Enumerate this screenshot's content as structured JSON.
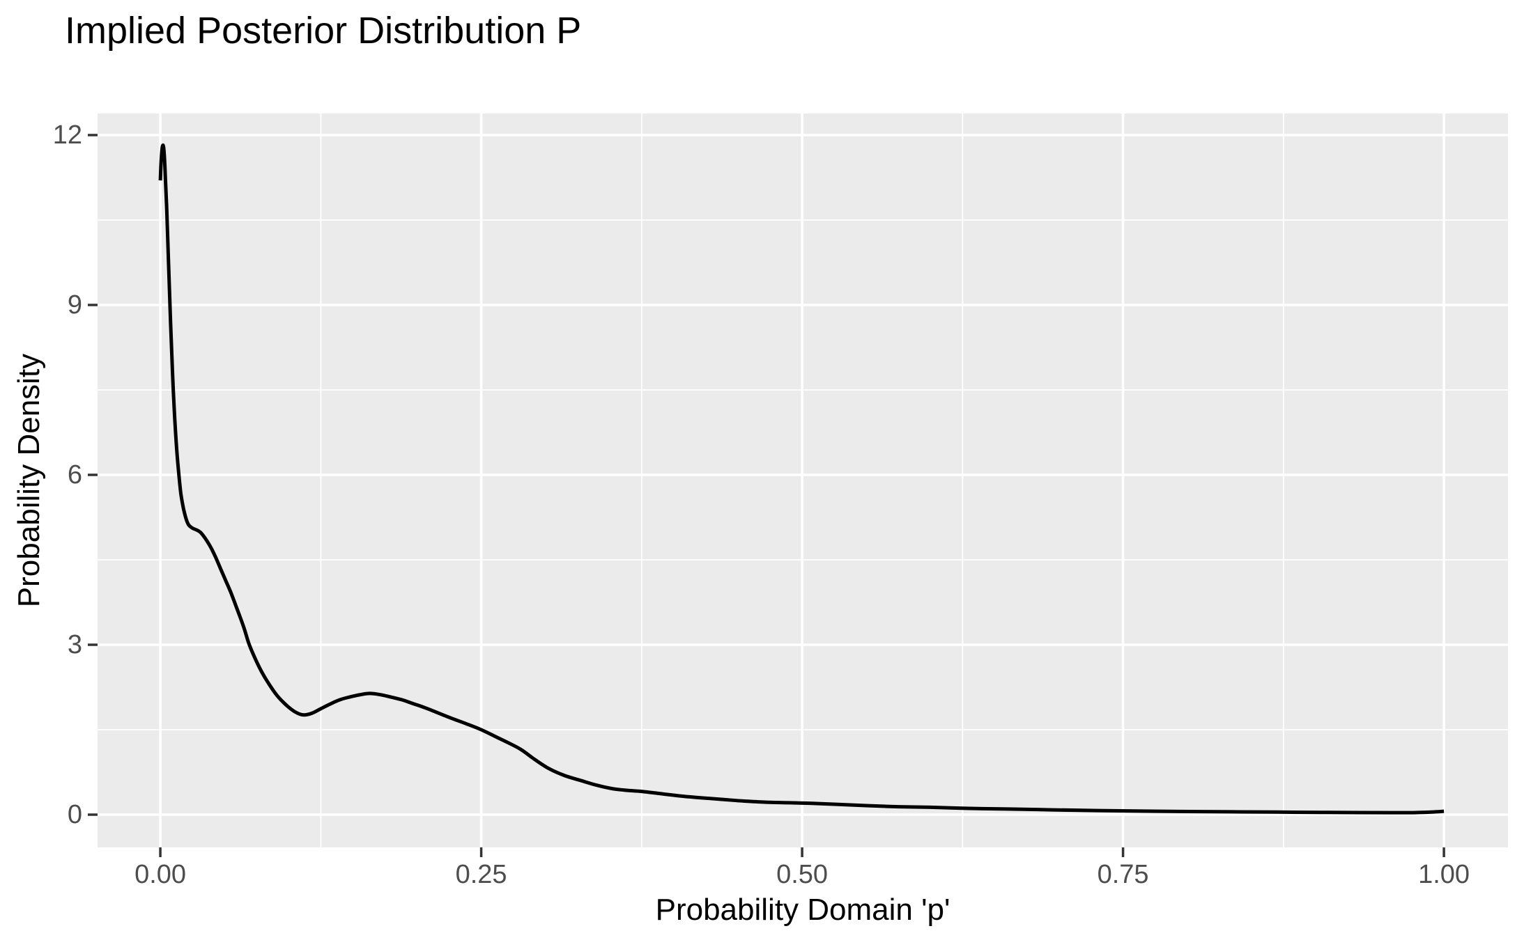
{
  "title": "Implied Posterior Distribution P",
  "chart_data": {
    "type": "line",
    "title": "Implied Posterior Distribution P",
    "xlabel": "Probability Domain 'p'",
    "ylabel": "Probability Density",
    "x_ticks": [
      0.0,
      0.25,
      0.5,
      0.75,
      1.0
    ],
    "x_tick_labels": [
      "0.00",
      "0.25",
      "0.50",
      "0.75",
      "1.00"
    ],
    "x_minor_ticks": [
      0.125,
      0.375,
      0.625,
      0.875
    ],
    "y_ticks": [
      0,
      3,
      6,
      9,
      12
    ],
    "y_tick_labels": [
      "0",
      "3",
      "6",
      "9",
      "12"
    ],
    "y_minor_ticks": [
      1.5,
      4.5,
      7.5,
      10.5
    ],
    "xlim": [
      -0.0489,
      1.0499
    ],
    "ylim": [
      -0.578,
      12.381
    ],
    "grid": true,
    "legend": false,
    "series": [
      {
        "name": "posterior-density",
        "color": "#000000",
        "points": [
          [
            0.0,
            11.2
          ],
          [
            0.0005,
            11.48
          ],
          [
            0.001,
            11.66
          ],
          [
            0.0015,
            11.78
          ],
          [
            0.002,
            11.82
          ],
          [
            0.0025,
            11.79
          ],
          [
            0.003,
            11.68
          ],
          [
            0.0035,
            11.48
          ],
          [
            0.004,
            11.22
          ],
          [
            0.005,
            10.68
          ],
          [
            0.006,
            10.02
          ],
          [
            0.007,
            9.33
          ],
          [
            0.008,
            8.68
          ],
          [
            0.009,
            8.08
          ],
          [
            0.01,
            7.54
          ],
          [
            0.0115,
            6.88
          ],
          [
            0.013,
            6.38
          ],
          [
            0.0145,
            5.99
          ],
          [
            0.016,
            5.67
          ],
          [
            0.018,
            5.41
          ],
          [
            0.02,
            5.23
          ],
          [
            0.022,
            5.12
          ],
          [
            0.025,
            5.06
          ],
          [
            0.028,
            5.03
          ],
          [
            0.031,
            4.99
          ],
          [
            0.034,
            4.91
          ],
          [
            0.037,
            4.81
          ],
          [
            0.04,
            4.69
          ],
          [
            0.043,
            4.55
          ],
          [
            0.047,
            4.34
          ],
          [
            0.051,
            4.13
          ],
          [
            0.055,
            3.92
          ],
          [
            0.06,
            3.62
          ],
          [
            0.065,
            3.31
          ],
          [
            0.069,
            3.02
          ],
          [
            0.074,
            2.75
          ],
          [
            0.079,
            2.52
          ],
          [
            0.084,
            2.33
          ],
          [
            0.09,
            2.13
          ],
          [
            0.096,
            1.98
          ],
          [
            0.102,
            1.86
          ],
          [
            0.107,
            1.79
          ],
          [
            0.112,
            1.76
          ],
          [
            0.118,
            1.79
          ],
          [
            0.125,
            1.87
          ],
          [
            0.132,
            1.95
          ],
          [
            0.14,
            2.03
          ],
          [
            0.148,
            2.08
          ],
          [
            0.156,
            2.12
          ],
          [
            0.163,
            2.14
          ],
          [
            0.171,
            2.12
          ],
          [
            0.179,
            2.08
          ],
          [
            0.188,
            2.03
          ],
          [
            0.197,
            1.96
          ],
          [
            0.206,
            1.89
          ],
          [
            0.216,
            1.8
          ],
          [
            0.227,
            1.7
          ],
          [
            0.239,
            1.6
          ],
          [
            0.25,
            1.5
          ],
          [
            0.261,
            1.38
          ],
          [
            0.271,
            1.27
          ],
          [
            0.281,
            1.15
          ],
          [
            0.292,
            0.97
          ],
          [
            0.303,
            0.81
          ],
          [
            0.315,
            0.69
          ],
          [
            0.328,
            0.6
          ],
          [
            0.34,
            0.52
          ],
          [
            0.352,
            0.46
          ],
          [
            0.363,
            0.43
          ],
          [
            0.375,
            0.41
          ],
          [
            0.39,
            0.37
          ],
          [
            0.405,
            0.33
          ],
          [
            0.42,
            0.3
          ],
          [
            0.437,
            0.27
          ],
          [
            0.455,
            0.24
          ],
          [
            0.472,
            0.22
          ],
          [
            0.49,
            0.21
          ],
          [
            0.508,
            0.2
          ],
          [
            0.528,
            0.18
          ],
          [
            0.55,
            0.16
          ],
          [
            0.575,
            0.14
          ],
          [
            0.6,
            0.13
          ],
          [
            0.63,
            0.11
          ],
          [
            0.66,
            0.1
          ],
          [
            0.695,
            0.085
          ],
          [
            0.73,
            0.072
          ],
          [
            0.765,
            0.062
          ],
          [
            0.8,
            0.055
          ],
          [
            0.835,
            0.05
          ],
          [
            0.87,
            0.045
          ],
          [
            0.905,
            0.04
          ],
          [
            0.935,
            0.037
          ],
          [
            0.96,
            0.035
          ],
          [
            0.98,
            0.038
          ],
          [
            0.992,
            0.048
          ],
          [
            1.0,
            0.06
          ]
        ]
      }
    ]
  },
  "style": {
    "panel_background": "#EBEBEB",
    "grid_color": "#FFFFFF",
    "tick_mark_color": "#333333",
    "tick_label_color": "#4D4D4D",
    "text_color": "#000000",
    "curve_color": "#000000"
  }
}
